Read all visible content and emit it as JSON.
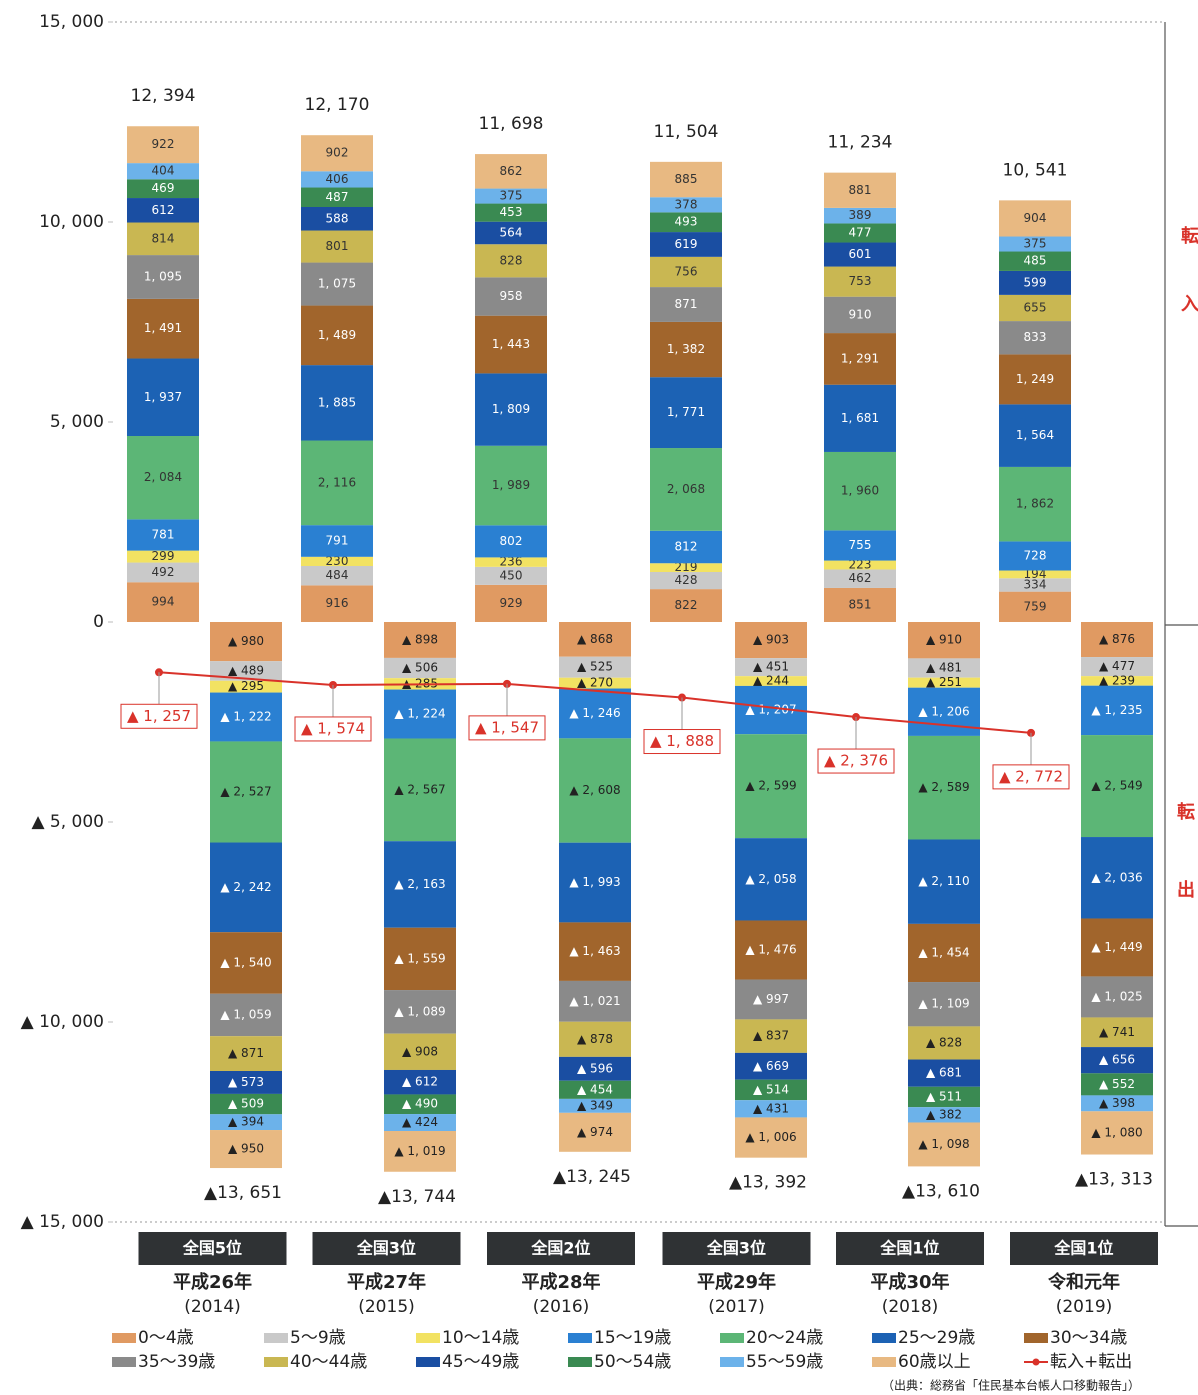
{
  "chart_data": {
    "type": "bar",
    "stacked": true,
    "categories": [
      "平成26年",
      "平成27年",
      "平成28年",
      "平成29年",
      "平成30年",
      "令和元年"
    ],
    "category_years": [
      "(2014)",
      "(2015)",
      "(2016)",
      "(2017)",
      "(2018)",
      "(2019)"
    ],
    "ranks": [
      "全国5位",
      "全国3位",
      "全国2位",
      "全国3位",
      "全国1位",
      "全国1位"
    ],
    "ylim": [
      -15000,
      15000
    ],
    "yticks": [
      {
        "value": 15000,
        "label": "15, 000"
      },
      {
        "value": 10000,
        "label": "10, 000"
      },
      {
        "value": 5000,
        "label": "5, 000"
      },
      0,
      {
        "value": -5000,
        "label": "▲ 5, 000"
      },
      {
        "value": -10000,
        "label": "▲ 10, 000"
      },
      {
        "value": -15000,
        "label": "▲ 15, 000"
      }
    ],
    "in_label": "転入",
    "out_label": "転出",
    "source": "（出典：総務省「住民基本台帳人口移動報告」）",
    "series": [
      {
        "name": "0～4歳",
        "color": "#e09a62",
        "values": [
          994,
          916,
          929,
          822,
          851,
          759
        ],
        "value_labels": [
          "994",
          "916",
          "929",
          "822",
          "851",
          "759"
        ],
        "out_values": [
          -980,
          -898,
          -868,
          -903,
          -910,
          -876
        ],
        "out_value_labels": [
          "▲ 980",
          "▲ 898",
          "▲ 868",
          "▲ 903",
          "▲ 910",
          "▲ 876"
        ]
      },
      {
        "name": "5～9歳",
        "color": "#c9c9c9",
        "values": [
          492,
          484,
          450,
          428,
          462,
          334
        ],
        "value_labels": [
          "492",
          "484",
          "450",
          "428",
          "462",
          "334"
        ],
        "out_values": [
          -489,
          -506,
          -525,
          -451,
          -481,
          -477
        ],
        "out_value_labels": [
          "▲ 489",
          "▲ 506",
          "▲ 525",
          "▲ 451",
          "▲ 481",
          "▲ 477"
        ]
      },
      {
        "name": "10～14歳",
        "color": "#f2e262",
        "values": [
          299,
          230,
          236,
          219,
          223,
          194
        ],
        "value_labels": [
          "299",
          "230",
          "236",
          "219",
          "223",
          "194"
        ],
        "out_values": [
          -295,
          -285,
          -270,
          -244,
          -251,
          -239
        ],
        "out_value_labels": [
          "▲ 295",
          "▲ 285",
          "▲ 270",
          "▲ 244",
          "▲ 251",
          "▲ 239"
        ]
      },
      {
        "name": "15～19歳",
        "color": "#2a80d2",
        "values": [
          781,
          791,
          802,
          812,
          755,
          728
        ],
        "value_labels": [
          "781",
          "791",
          "802",
          "812",
          "755",
          "728"
        ],
        "out_values": [
          -1222,
          -1224,
          -1246,
          -1207,
          -1206,
          -1235
        ],
        "out_value_labels": [
          "▲ 1, 222",
          "▲ 1, 224",
          "▲ 1, 246",
          "▲ 1, 207",
          "▲ 1, 206",
          "▲ 1, 235"
        ]
      },
      {
        "name": "20～24歳",
        "color": "#5cb676",
        "values": [
          2084,
          2116,
          1989,
          2068,
          1960,
          1862
        ],
        "value_labels": [
          "2, 084",
          "2, 116",
          "1, 989",
          "2, 068",
          "1, 960",
          "1, 862"
        ],
        "out_values": [
          -2527,
          -2567,
          -2608,
          -2599,
          -2589,
          -2549
        ],
        "out_value_labels": [
          "▲ 2, 527",
          "▲ 2, 567",
          "▲ 2, 608",
          "▲ 2, 599",
          "▲ 2, 589",
          "▲ 2, 549"
        ]
      },
      {
        "name": "25～29歳",
        "color": "#1c62b4",
        "values": [
          1937,
          1885,
          1809,
          1771,
          1681,
          1564
        ],
        "value_labels": [
          "1, 937",
          "1, 885",
          "1, 809",
          "1, 771",
          "1, 681",
          "1, 564"
        ],
        "out_values": [
          -2242,
          -2163,
          -1993,
          -2058,
          -2110,
          -2036
        ],
        "out_value_labels": [
          "▲ 2, 242",
          "▲ 2, 163",
          "▲ 1, 993",
          "▲ 2, 058",
          "▲ 2, 110",
          "▲ 2, 036"
        ]
      },
      {
        "name": "30～34歳",
        "color": "#a1652c",
        "values": [
          1491,
          1489,
          1443,
          1382,
          1291,
          1249
        ],
        "value_labels": [
          "1, 491",
          "1, 489",
          "1, 443",
          "1, 382",
          "1, 291",
          "1, 249"
        ],
        "out_values": [
          -1540,
          -1559,
          -1463,
          -1476,
          -1454,
          -1449
        ],
        "out_value_labels": [
          "▲ 1, 540",
          "▲ 1, 559",
          "▲ 1, 463",
          "▲ 1, 476",
          "▲ 1, 454",
          "▲ 1, 449"
        ]
      },
      {
        "name": "35～39歳",
        "color": "#8a8a8a",
        "values": [
          1095,
          1075,
          958,
          871,
          910,
          833
        ],
        "value_labels": [
          "1, 095",
          "1, 075",
          "958",
          "871",
          "910",
          "833"
        ],
        "out_values": [
          -1059,
          -1089,
          -1021,
          -997,
          -1109,
          -1025
        ],
        "out_value_labels": [
          "▲ 1, 059",
          "▲ 1, 089",
          "▲ 1, 021",
          "▲ 997",
          "▲ 1, 109",
          "▲ 1, 025"
        ]
      },
      {
        "name": "40～44歳",
        "color": "#c9b752",
        "values": [
          814,
          801,
          828,
          756,
          753,
          655
        ],
        "value_labels": [
          "814",
          "801",
          "828",
          "756",
          "753",
          "655"
        ],
        "out_values": [
          -871,
          -908,
          -878,
          -837,
          -828,
          -741
        ],
        "out_value_labels": [
          "▲ 871",
          "▲ 908",
          "▲ 878",
          "▲ 837",
          "▲ 828",
          "▲ 741"
        ]
      },
      {
        "name": "45～49歳",
        "color": "#1a4ea2",
        "values": [
          612,
          588,
          564,
          619,
          601,
          599
        ],
        "value_labels": [
          "612",
          "588",
          "564",
          "619",
          "601",
          "599"
        ],
        "out_values": [
          -573,
          -612,
          -596,
          -669,
          -681,
          -656
        ],
        "out_value_labels": [
          "▲ 573",
          "▲ 612",
          "▲ 596",
          "▲ 669",
          "▲ 681",
          "▲ 656"
        ]
      },
      {
        "name": "50～54歳",
        "color": "#3a8a52",
        "values": [
          469,
          487,
          453,
          493,
          477,
          485
        ],
        "value_labels": [
          "469",
          "487",
          "453",
          "493",
          "477",
          "485"
        ],
        "out_values": [
          -509,
          -490,
          -454,
          -514,
          -511,
          -552
        ],
        "out_value_labels": [
          "▲ 509",
          "▲ 490",
          "▲ 454",
          "▲ 514",
          "▲ 511",
          "▲ 552"
        ]
      },
      {
        "name": "55～59歳",
        "color": "#6cb2ea",
        "values": [
          404,
          406,
          375,
          378,
          389,
          375
        ],
        "value_labels": [
          "404",
          "406",
          "375",
          "378",
          "389",
          "375"
        ],
        "out_values": [
          -394,
          -424,
          -349,
          -431,
          -382,
          -398
        ],
        "out_value_labels": [
          "▲ 394",
          "▲ 424",
          "▲ 349",
          "▲ 431",
          "▲ 382",
          "▲ 398"
        ]
      },
      {
        "name": "60歳以上",
        "color": "#e8b982",
        "values": [
          922,
          902,
          862,
          885,
          881,
          904
        ],
        "value_labels": [
          "922",
          "902",
          "862",
          "885",
          "881",
          "904"
        ],
        "out_values": [
          -950,
          -1019,
          -974,
          -1006,
          -1098,
          -1080
        ],
        "out_value_labels": [
          "▲ 950",
          "▲ 1, 019",
          "▲ 974",
          "▲ 1, 006",
          "▲ 1, 098",
          "▲ 1, 080"
        ]
      }
    ],
    "in_totals": [
      12394,
      12170,
      11698,
      11504,
      11234,
      10541
    ],
    "in_total_labels": [
      "12, 394",
      "12, 170",
      "11, 698",
      "11, 504",
      "11, 234",
      "10, 541"
    ],
    "out_totals": [
      -13651,
      -13744,
      -13245,
      -13392,
      -13610,
      -13313
    ],
    "out_total_labels": [
      "▲13, 651",
      "▲13, 744",
      "▲13, 245",
      "▲13, 392",
      "▲13, 610",
      "▲13, 313"
    ],
    "net": {
      "name": "転入+転出",
      "color": "#d9322a",
      "values": [
        -1257,
        -1574,
        -1547,
        -1888,
        -2376,
        -2772
      ],
      "value_labels": [
        "▲ 1, 257",
        "▲ 1, 574",
        "▲ 1, 547",
        "▲ 1, 888",
        "▲ 2, 376",
        "▲ 2, 772"
      ]
    }
  }
}
